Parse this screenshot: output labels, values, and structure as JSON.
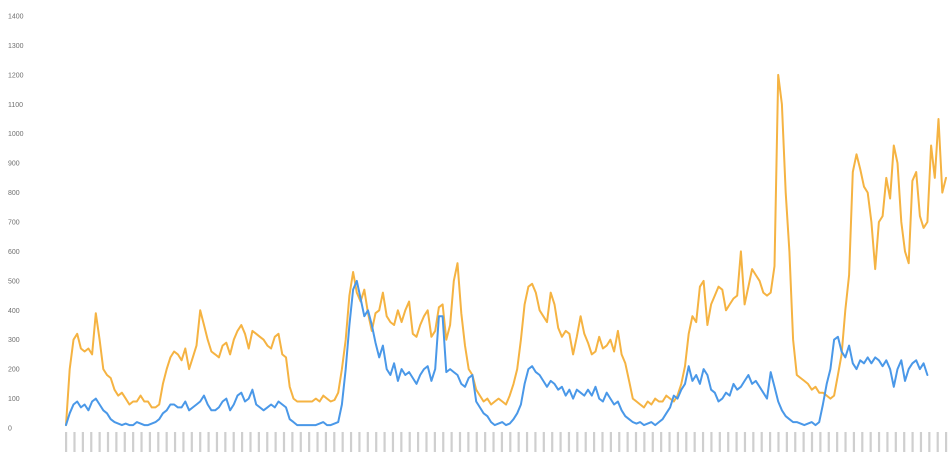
{
  "chart_data": {
    "type": "line",
    "title": "",
    "xlabel": "",
    "ylabel": "",
    "ylim": [
      0,
      1400
    ],
    "yticks": [
      0,
      100,
      200,
      300,
      400,
      500,
      600,
      700,
      800,
      900,
      1000,
      1100,
      1200,
      1300,
      1400
    ],
    "grid": false,
    "legend": "none",
    "series": [
      {
        "color": "#f5b342",
        "values": [
          10,
          200,
          300,
          320,
          270,
          260,
          270,
          250,
          390,
          300,
          200,
          180,
          170,
          130,
          110,
          120,
          100,
          80,
          90,
          90,
          110,
          90,
          90,
          70,
          70,
          80,
          150,
          200,
          240,
          260,
          250,
          230,
          270,
          200,
          240,
          280,
          400,
          350,
          300,
          260,
          250,
          240,
          280,
          290,
          250,
          300,
          330,
          350,
          320,
          270,
          330,
          320,
          310,
          300,
          280,
          270,
          310,
          320,
          250,
          240,
          140,
          100,
          90,
          90,
          90,
          90,
          90,
          100,
          90,
          110,
          100,
          90,
          95,
          120,
          200,
          300,
          450,
          530,
          460,
          430,
          470,
          390,
          330,
          390,
          400,
          460,
          380,
          360,
          350,
          400,
          360,
          400,
          430,
          320,
          310,
          350,
          380,
          400,
          310,
          330,
          410,
          420,
          300,
          350,
          500,
          560,
          390,
          280,
          200,
          180,
          130,
          110,
          90,
          100,
          80,
          90,
          100,
          90,
          80,
          110,
          150,
          200,
          300,
          420,
          480,
          490,
          460,
          400,
          380,
          360,
          460,
          420,
          340,
          310,
          330,
          320,
          250,
          310,
          380,
          320,
          290,
          250,
          260,
          310,
          270,
          280,
          300,
          260,
          330,
          250,
          220,
          160,
          100,
          90,
          80,
          70,
          90,
          80,
          100,
          90,
          90,
          110,
          100,
          90,
          110,
          150,
          210,
          320,
          380,
          360,
          480,
          500,
          350,
          420,
          450,
          480,
          470,
          400,
          420,
          440,
          450,
          600,
          420,
          480,
          540,
          520,
          500,
          460,
          450,
          460,
          550,
          1200,
          1100,
          800,
          600,
          300,
          180,
          170,
          160,
          150,
          130,
          140,
          120,
          120,
          110,
          100,
          110,
          180,
          250,
          400,
          520,
          870,
          930,
          880,
          820,
          800,
          700,
          540,
          700,
          720,
          850,
          780,
          960,
          900,
          700,
          600,
          560,
          840,
          870,
          720,
          680,
          700,
          960,
          850,
          1050,
          800,
          850
        ]
      },
      {
        "color": "#4a98e8",
        "values": [
          10,
          50,
          80,
          90,
          70,
          80,
          60,
          90,
          100,
          80,
          60,
          50,
          30,
          20,
          15,
          10,
          15,
          10,
          10,
          20,
          15,
          10,
          10,
          15,
          20,
          30,
          50,
          60,
          80,
          80,
          70,
          70,
          90,
          60,
          70,
          80,
          90,
          110,
          80,
          60,
          60,
          70,
          90,
          100,
          60,
          80,
          110,
          120,
          90,
          100,
          130,
          80,
          70,
          60,
          70,
          80,
          70,
          90,
          80,
          70,
          30,
          20,
          10,
          10,
          10,
          10,
          10,
          10,
          15,
          20,
          10,
          10,
          15,
          20,
          80,
          200,
          350,
          470,
          500,
          440,
          380,
          400,
          350,
          290,
          240,
          280,
          200,
          180,
          220,
          160,
          200,
          180,
          190,
          170,
          150,
          180,
          200,
          210,
          160,
          200,
          380,
          380,
          190,
          200,
          190,
          180,
          150,
          140,
          170,
          180,
          90,
          70,
          50,
          40,
          20,
          10,
          15,
          20,
          10,
          15,
          30,
          50,
          80,
          150,
          200,
          210,
          190,
          180,
          160,
          140,
          160,
          150,
          130,
          140,
          110,
          130,
          100,
          130,
          120,
          110,
          130,
          110,
          140,
          100,
          90,
          120,
          100,
          80,
          90,
          60,
          40,
          30,
          20,
          15,
          20,
          10,
          15,
          20,
          10,
          20,
          30,
          50,
          70,
          110,
          100,
          130,
          150,
          210,
          160,
          180,
          150,
          200,
          180,
          130,
          120,
          90,
          100,
          120,
          110,
          150,
          130,
          140,
          160,
          180,
          150,
          160,
          140,
          120,
          100,
          190,
          140,
          90,
          60,
          40,
          30,
          20,
          20,
          15,
          10,
          15,
          20,
          10,
          20,
          80,
          150,
          200,
          300,
          310,
          260,
          240,
          280,
          220,
          200,
          230,
          220,
          240,
          220,
          240,
          230,
          210,
          230,
          200,
          140,
          200,
          230,
          160,
          200,
          220,
          230,
          200,
          220,
          180
        ]
      }
    ]
  }
}
